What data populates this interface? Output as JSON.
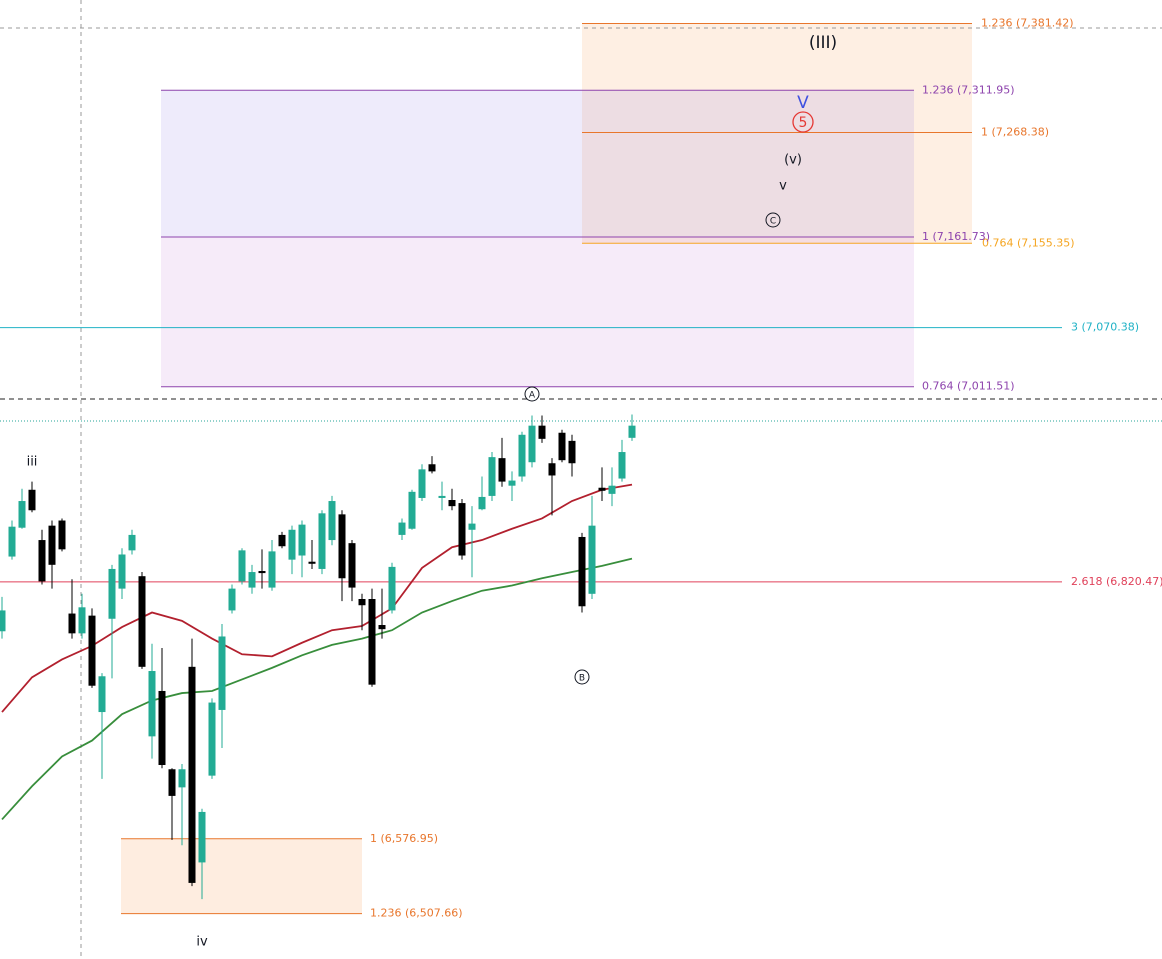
{
  "chart_data": {
    "type": "candlestick",
    "ylim": [
      6466,
      7406
    ],
    "log": true,
    "up_color": "#22ab94",
    "down_color": "#000000",
    "open": [
      6773,
      6845,
      6873,
      6910,
      6861,
      6875,
      6880,
      6790,
      6771,
      6788,
      6696,
      6785,
      6814,
      6851,
      6826,
      6673,
      6716,
      6642,
      6625,
      6739,
      6555,
      6636,
      6698,
      6793,
      6821,
      6815,
      6831,
      6815,
      6866,
      6842,
      6846,
      6840,
      6833,
      6861,
      6886,
      6858,
      6804,
      6804,
      6779,
      6793,
      6866,
      6872,
      6902,
      6935,
      6902,
      6900,
      6897,
      6871,
      6891,
      6904,
      6941,
      6914,
      6923,
      6937,
      6973,
      6936,
      6966,
      6958,
      6864,
      6809,
      6912,
      6906,
      6921,
      6961
    ],
    "high": [
      6806,
      6880,
      6911,
      6918,
      6871,
      6880,
      6882,
      6823,
      6809,
      6795,
      6733,
      6837,
      6853,
      6871,
      6830,
      6761,
      6757,
      6643,
      6647,
      6766,
      6605,
      6709,
      6780,
      6818,
      6853,
      6837,
      6852,
      6861,
      6869,
      6875,
      6880,
      6861,
      6890,
      6904,
      6890,
      6861,
      6809,
      6814,
      6814,
      6839,
      6882,
      6910,
      6935,
      6943,
      6918,
      6911,
      6901,
      6894,
      6923,
      6947,
      6961,
      6928,
      6967,
      6983,
      6983,
      6941,
      6969,
      6964,
      6868,
      6904,
      6932,
      6932,
      6959,
      6984
    ],
    "low": [
      6766,
      6842,
      6872,
      6888,
      6818,
      6814,
      6850,
      6766,
      6766,
      6719,
      6633,
      6728,
      6804,
      6847,
      6737,
      6652,
      6643,
      6576,
      6571,
      6533,
      6521,
      6633,
      6662,
      6790,
      6818,
      6809,
      6814,
      6812,
      6853,
      6828,
      6825,
      6833,
      6828,
      6856,
      6802,
      6802,
      6774,
      6720,
      6766,
      6790,
      6861,
      6871,
      6899,
      6926,
      6890,
      6890,
      6842,
      6825,
      6890,
      6899,
      6913,
      6899,
      6918,
      6932,
      6956,
      6885,
      6937,
      6923,
      6791,
      6804,
      6899,
      6894,
      6918,
      6958
    ],
    "close": [
      6793,
      6874,
      6899,
      6890,
      6821,
      6837,
      6852,
      6771,
      6796,
      6721,
      6730,
      6833,
      6847,
      6866,
      6739,
      6735,
      6646,
      6617,
      6642,
      6536,
      6602,
      6705,
      6768,
      6814,
      6851,
      6830,
      6829,
      6850,
      6855,
      6871,
      6876,
      6838,
      6887,
      6899,
      6824,
      6815,
      6798,
      6722,
      6775,
      6835,
      6878,
      6908,
      6930,
      6928,
      6904,
      6894,
      6846,
      6877,
      6903,
      6942,
      6918,
      6919,
      6964,
      6973,
      6960,
      6924,
      6939,
      6936,
      6797,
      6875,
      6909,
      6914,
      6947,
      6973
    ],
    "moving_averages": [
      {
        "color": "#b2202e",
        "values": [
          6696,
          6729,
          6746,
          6759,
          6777,
          6791,
          6783,
          6766,
          6751,
          6749,
          6762,
          6774,
          6778,
          6795,
          6834,
          6854,
          6861,
          6872,
          6882,
          6899,
          6910,
          6915
        ]
      },
      {
        "color": "#388e3c",
        "values": [
          6595,
          6626,
          6654,
          6669,
          6694,
          6707,
          6714,
          6716,
          6727,
          6738,
          6750,
          6760,
          6766,
          6774,
          6791,
          6802,
          6812,
          6817,
          6824,
          6830,
          6836,
          6843
        ]
      }
    ],
    "levels": [
      {
        "value": 7381.42,
        "label": "1.236 (7,381.42)",
        "color": "#e8762c"
      },
      {
        "value": 7268.38,
        "label": "1 (7,268.38)",
        "color": "#e8762c"
      },
      {
        "value": 7155.35,
        "label": "0.764 (7,155.35)",
        "color": "#f5a623"
      },
      {
        "value": 7311.95,
        "label": "1.236 (7,311.95)",
        "color": "#8e44ad"
      },
      {
        "value": 7161.73,
        "label": "1 (7,161.73)",
        "color": "#8e44ad"
      },
      {
        "value": 7011.51,
        "label": "0.764 (7,011.51)",
        "color": "#8e44ad"
      },
      {
        "value": 7070.38,
        "label": "3 (7,070.38)",
        "color": "#20b2c6"
      },
      {
        "value": 6820.47,
        "label": "2.618 (6,820.47)",
        "color": "#e0415a"
      },
      {
        "value": 6576.95,
        "label": "1 (6,576.95)",
        "color": "#e8762c"
      },
      {
        "value": 6507.66,
        "label": "1.236 (6,507.66)",
        "color": "#e8762c"
      }
    ],
    "wave_labels": [
      "(III)",
      "V",
      "5",
      "(v)",
      "v",
      "C",
      "A",
      "B",
      "iii",
      "iv"
    ]
  }
}
